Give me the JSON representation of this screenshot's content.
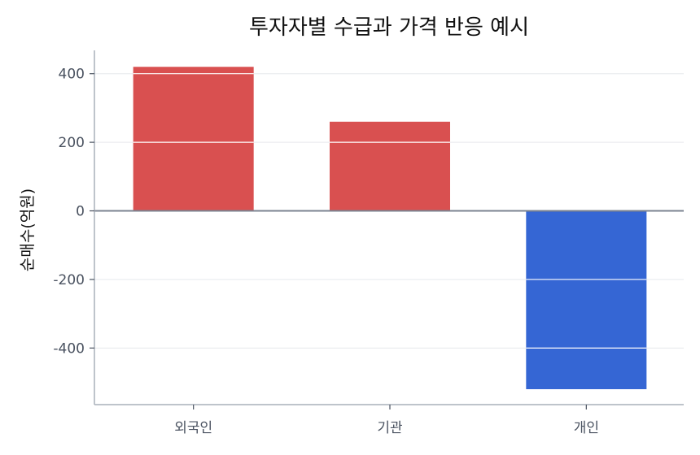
{
  "chart_data": {
    "type": "bar",
    "title": "투자자별 수급과 가격 반응 예시",
    "xlabel": "",
    "ylabel": "순매수(억원)",
    "categories": [
      "외국인",
      "기관",
      "개인"
    ],
    "values": [
      420,
      260,
      -520
    ],
    "colors": [
      "#d95050",
      "#d95050",
      "#3566d4"
    ],
    "yticks": [
      -400,
      -200,
      0,
      200,
      400
    ],
    "ylim": [
      -565,
      468
    ],
    "grid": true,
    "legend": "none"
  }
}
